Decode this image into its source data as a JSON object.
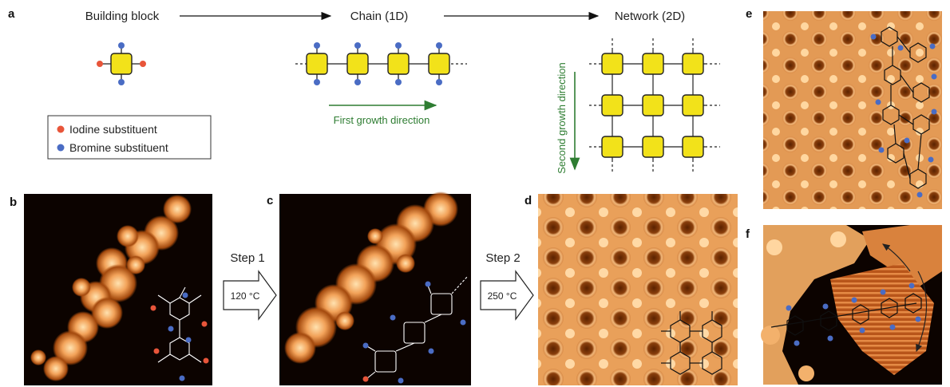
{
  "panel_letters": {
    "a": "a",
    "b": "b",
    "c": "c",
    "d": "d",
    "e": "e",
    "f": "f"
  },
  "schematic": {
    "building_block": "Building block",
    "chain": "Chain (1D)",
    "network": "Network (2D)",
    "first_growth": "First growth direction",
    "second_growth": "Second growth direction"
  },
  "legend": {
    "iodine": "Iodine substituent",
    "bromine": "Bromine substituent"
  },
  "steps": [
    {
      "label": "Step 1",
      "temperature": "120 °C"
    },
    {
      "label": "Step 2",
      "temperature": "250 °C"
    }
  ],
  "colors": {
    "block": "#f2e21a",
    "iodine": "#e8553a",
    "bromine": "#4a6cc4",
    "growth_arrow": "#2e7d32",
    "stm_bg": "#0c0300",
    "stm_bright": "#f6b36a"
  }
}
